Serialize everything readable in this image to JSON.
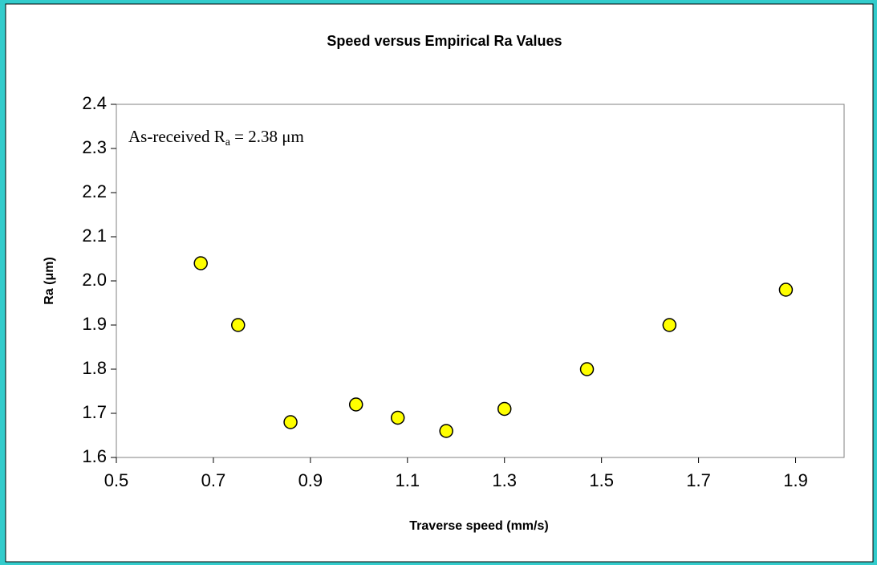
{
  "chart_data": {
    "type": "scatter",
    "title": "Speed versus Empirical Ra Values",
    "x_label": "Traverse speed (mm/s)",
    "y_label": "Ra (μm)",
    "annotation": {
      "text": "As-received R",
      "sub": "a",
      "rest": " = 2.38 μm"
    },
    "x": [
      0.674,
      0.751,
      0.859,
      0.994,
      1.08,
      1.18,
      1.3,
      1.47,
      1.64,
      1.88
    ],
    "values": [
      2.04,
      1.9,
      1.68,
      1.72,
      1.69,
      1.66,
      1.71,
      1.8,
      1.9,
      1.98
    ],
    "color": "#ffff00",
    "xlim": [
      0.5,
      2.0
    ],
    "xticks": [
      0.5,
      0.7,
      0.9,
      1.1,
      1.3,
      1.5,
      1.7,
      1.9
    ],
    "ylim": [
      1.6,
      2.4
    ],
    "yticks": [
      1.6,
      1.7,
      1.8,
      1.9,
      {
        "value": 2,
        "label": "2.0"
      },
      2.1,
      2.2,
      2.3,
      2.4
    ]
  }
}
